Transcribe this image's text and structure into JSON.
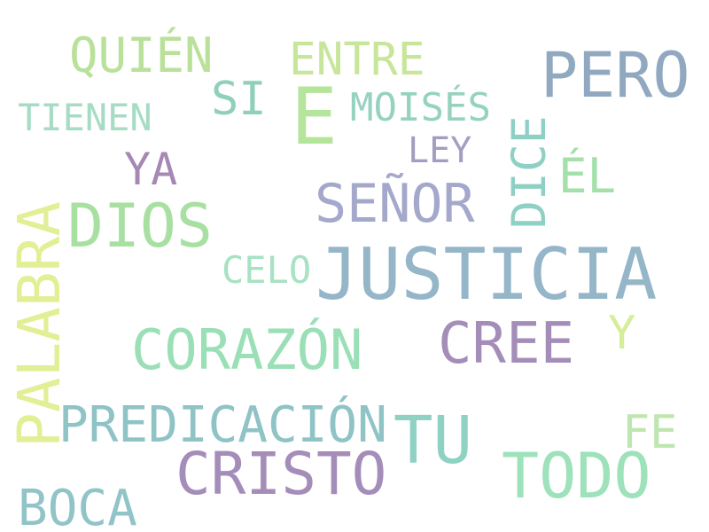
{
  "words": [
    {
      "text": "QUIÉN",
      "color": "#b9e19a"
    },
    {
      "text": "ENTRE",
      "color": "#c8e69a"
    },
    {
      "text": "PERO",
      "color": "#90a9c0"
    },
    {
      "text": "E",
      "color": "#b5e59a"
    },
    {
      "text": "SI",
      "color": "#90cfb8"
    },
    {
      "text": "MOISÉS",
      "color": "#96d2c0"
    },
    {
      "text": "TIENEN",
      "color": "#a6dcc4"
    },
    {
      "text": "LEY",
      "color": "#a49dc0"
    },
    {
      "text": "DICE",
      "color": "#8fd0c4"
    },
    {
      "text": "YA",
      "color": "#a688b4"
    },
    {
      "text": "ÉL",
      "color": "#a4e0aa"
    },
    {
      "text": "SEÑOR",
      "color": "#a4a8cb"
    },
    {
      "text": "DIOS",
      "color": "#a8e0a2"
    },
    {
      "text": "PALABRA",
      "color": "#e2ef94"
    },
    {
      "text": "CELO",
      "color": "#a7e2c3"
    },
    {
      "text": "JUSTICIA",
      "color": "#95b6c8"
    },
    {
      "text": "CORAZÓN",
      "color": "#9adfb6"
    },
    {
      "text": "CREE",
      "color": "#a48db9"
    },
    {
      "text": "Y",
      "color": "#d5ee98"
    },
    {
      "text": "PREDICACIÓN",
      "color": "#8fc3c6"
    },
    {
      "text": "TU",
      "color": "#8fd2c4"
    },
    {
      "text": "FE",
      "color": "#bfe6b0"
    },
    {
      "text": "CRISTO",
      "color": "#a48db9"
    },
    {
      "text": "TODO",
      "color": "#9de2ba"
    },
    {
      "text": "BOCA",
      "color": "#91c4c8"
    }
  ]
}
